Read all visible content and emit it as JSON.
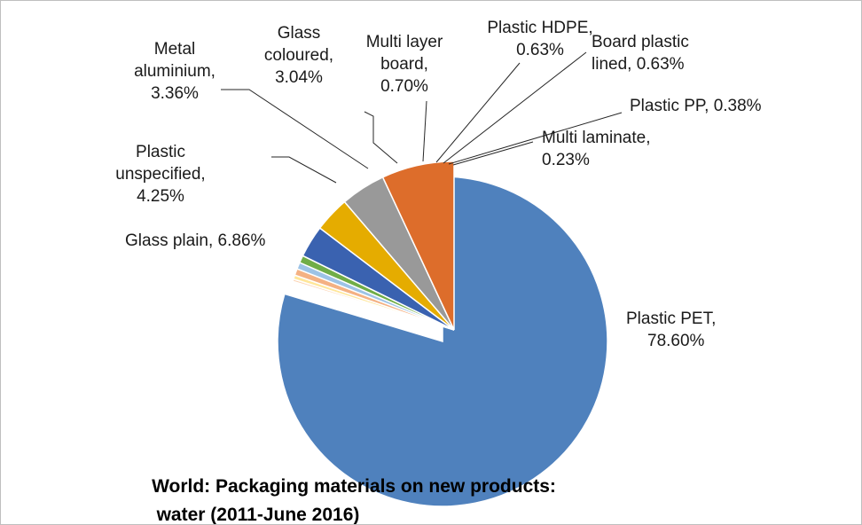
{
  "chart_data": {
    "type": "pie",
    "title_lines": [
      "World: Packaging materials on new products:",
      "water (2011-June 2016)"
    ],
    "slices": [
      {
        "name": "Plastic PET",
        "value": 78.6,
        "label_lines": [
          "Plastic PET,",
          "78.60%"
        ],
        "color": "#4f81bd"
      },
      {
        "name": "Multi laminate",
        "value": 0.23,
        "label_lines": [
          "Multi laminate,",
          "0.23%"
        ],
        "color": "#fcd5b5"
      },
      {
        "name": "Plastic PP",
        "value": 0.38,
        "label_lines": [
          "Plastic PP, 0.38%"
        ],
        "color": "#ffe699"
      },
      {
        "name": "Board plastic lined",
        "value": 0.63,
        "label_lines": [
          "Board plastic",
          "lined, 0.63%"
        ],
        "color": "#f4b183"
      },
      {
        "name": "Plastic HDPE",
        "value": 0.63,
        "label_lines": [
          "Plastic HDPE,",
          "0.63%"
        ],
        "color": "#9dc3e6"
      },
      {
        "name": "Multi layer board",
        "value": 0.7,
        "label_lines": [
          "Multi layer",
          "board,",
          "0.70%"
        ],
        "color": "#70ad47"
      },
      {
        "name": "Glass coloured",
        "value": 3.04,
        "label_lines": [
          "Glass",
          "coloured,",
          "3.04%"
        ],
        "color": "#3a62b0"
      },
      {
        "name": "Metal aluminium",
        "value": 3.36,
        "label_lines": [
          "Metal",
          "aluminium,",
          "3.36%"
        ],
        "color": "#e5ac00"
      },
      {
        "name": "Plastic unspecified",
        "value": 4.25,
        "label_lines": [
          "Plastic",
          "unspecified,",
          "4.25%"
        ],
        "color": "#999999"
      },
      {
        "name": "Glass plain",
        "value": 6.86,
        "label_lines": [
          "Glass plain, 6.86%"
        ],
        "color": "#dd6d2b"
      }
    ],
    "exploded_slice": "Plastic PET",
    "start_angle_deg": 0,
    "direction": "clockwise"
  }
}
